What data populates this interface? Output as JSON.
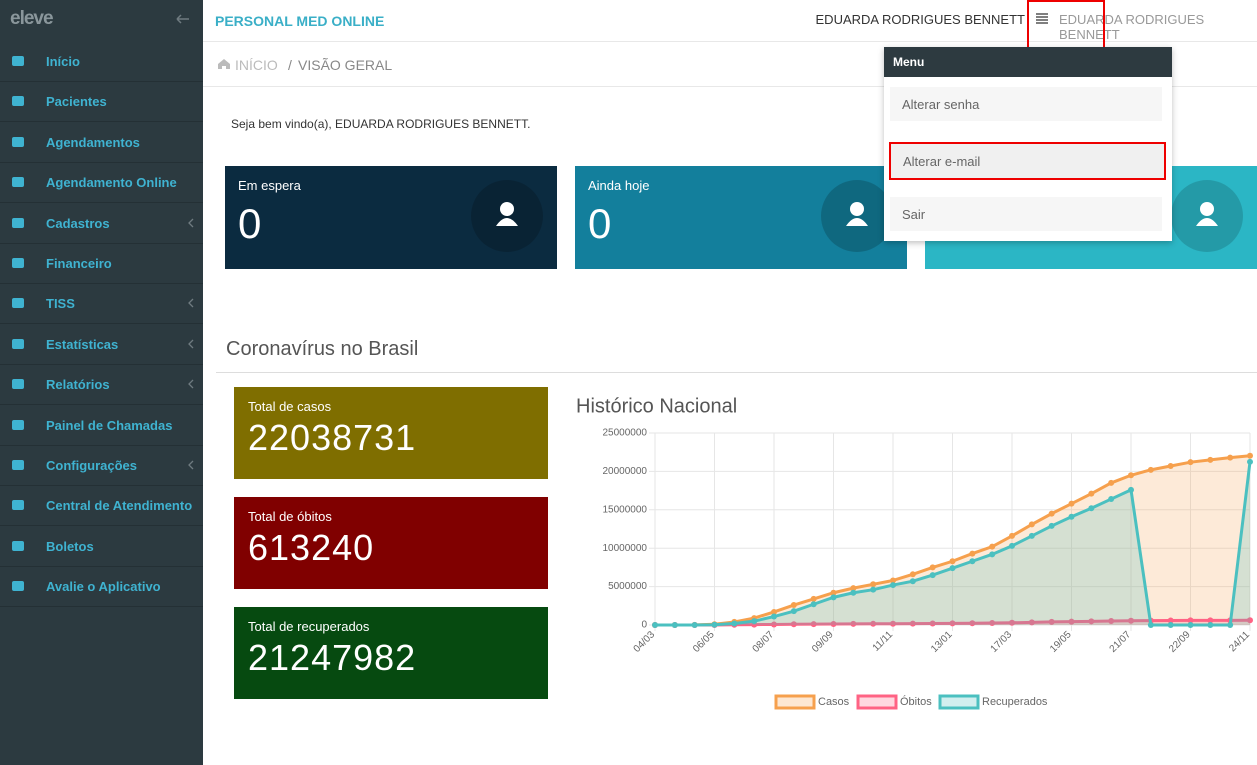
{
  "sidebar": {
    "logo": "eleve",
    "items": [
      {
        "label": "Início",
        "submenu": false
      },
      {
        "label": "Pacientes",
        "submenu": false
      },
      {
        "label": "Agendamentos",
        "submenu": false
      },
      {
        "label": "Agendamento Online",
        "submenu": false
      },
      {
        "label": "Cadastros",
        "submenu": true
      },
      {
        "label": "Financeiro",
        "submenu": false
      },
      {
        "label": "TISS",
        "submenu": true
      },
      {
        "label": "Estatísticas",
        "submenu": true
      },
      {
        "label": "Relatórios",
        "submenu": true
      },
      {
        "label": "Painel de Chamadas",
        "submenu": false
      },
      {
        "label": "Configurações",
        "submenu": true
      },
      {
        "label": "Central de Atendimento",
        "submenu": false
      },
      {
        "label": "Boletos",
        "submenu": false
      },
      {
        "label": "Avalie o Aplicativo",
        "submenu": false
      }
    ]
  },
  "header": {
    "brand": "PERSONAL MED ONLINE",
    "user": "EDUARDA RODRIGUES BENNETT",
    "user_menu": "EDUARDA RODRIGUES BENNETT"
  },
  "breadcrumb": {
    "home": "INÍCIO",
    "separator": "/",
    "current": "VISÃO GERAL"
  },
  "welcome": "Seja bem vindo(a), EDUARDA RODRIGUES BENNETT.",
  "cards": [
    {
      "label": "Em espera",
      "value": "0",
      "color": "#0b2b40"
    },
    {
      "label": "Ainda hoje",
      "value": "0",
      "color": "#137f9c"
    }
  ],
  "dropdown": {
    "title": "Menu",
    "items": [
      "Alterar senha",
      "Alterar e-mail",
      "Sair"
    ],
    "highlighted": 1
  },
  "section_title": "Coronavírus no Brasil",
  "stats": [
    {
      "label": "Total de casos",
      "value": "22038731",
      "color": "#7f6e00"
    },
    {
      "label": "Total de óbitos",
      "value": "613240",
      "color": "#800000"
    },
    {
      "label": "Total de recuperados",
      "value": "21247982",
      "color": "#064a10"
    }
  ],
  "chart_data": {
    "type": "line",
    "title": "Histórico Nacional",
    "categories": [
      "04/03",
      null,
      null,
      "06/05",
      null,
      null,
      "08/07",
      null,
      null,
      "09/09",
      null,
      null,
      "11/11",
      null,
      null,
      "13/01",
      null,
      null,
      "17/03",
      null,
      null,
      "19/05",
      null,
      null,
      "21/07",
      null,
      null,
      "22/09",
      null,
      null,
      "24/11"
    ],
    "series": [
      {
        "name": "Casos",
        "color": "#f6a04d",
        "values": [
          0,
          0,
          10000,
          100000,
          400000,
          900000,
          1700000,
          2600000,
          3400000,
          4200000,
          4800000,
          5300000,
          5800000,
          6600000,
          7500000,
          8300000,
          9300000,
          10200000,
          11600000,
          13100000,
          14500000,
          15800000,
          17100000,
          18500000,
          19500000,
          20200000,
          20700000,
          21200000,
          21500000,
          21800000,
          22038731
        ]
      },
      {
        "name": "Óbitos",
        "color": "#ff6384",
        "values": [
          0,
          0,
          500,
          7000,
          25000,
          50000,
          70000,
          95000,
          115000,
          130000,
          145000,
          155000,
          165000,
          180000,
          195000,
          210000,
          235000,
          260000,
          290000,
          340000,
          400000,
          440000,
          480000,
          520000,
          550000,
          570000,
          585000,
          595000,
          603000,
          609000,
          613240
        ]
      },
      {
        "name": "Recuperados",
        "color": "#4bc0c0",
        "values": [
          0,
          0,
          0,
          40000,
          200000,
          500000,
          1100000,
          1800000,
          2700000,
          3600000,
          4200000,
          4600000,
          5200000,
          5700000,
          6500000,
          7400000,
          8300000,
          9200000,
          10300000,
          11600000,
          12900000,
          14100000,
          15200000,
          16400000,
          17600000,
          0,
          0,
          0,
          0,
          0,
          21247982
        ]
      }
    ],
    "ylim": [
      0,
      25000000
    ],
    "yticks": [
      0,
      5000000,
      10000000,
      15000000,
      20000000,
      25000000
    ],
    "grid": true,
    "legend": "bottom"
  }
}
